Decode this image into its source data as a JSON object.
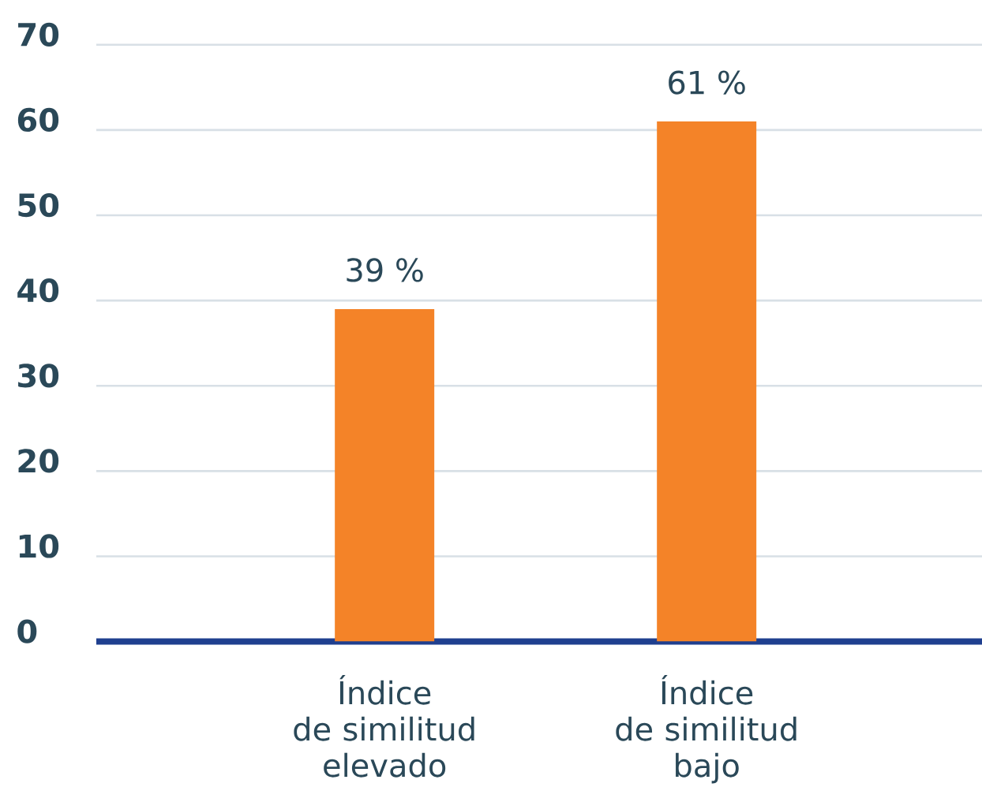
{
  "chart_data": {
    "type": "bar",
    "categories": [
      "Índice de similitud elevado",
      "Índice de similitud bajo"
    ],
    "values": [
      39,
      61
    ],
    "color": "#f48328",
    "value_labels": [
      "39 %",
      "61 %"
    ],
    "ylim": [
      0,
      70
    ],
    "yticks": [
      0,
      10,
      20,
      30,
      40,
      50,
      60,
      70
    ],
    "grid": "y"
  }
}
